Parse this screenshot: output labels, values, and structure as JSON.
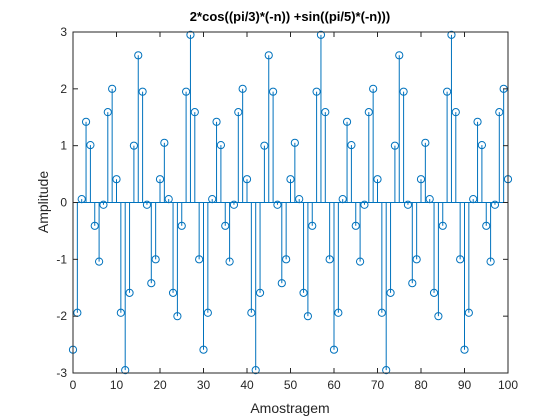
{
  "chart_data": {
    "type": "stem",
    "title": "2*cos((pi/3)*(-n)) +sin((pi/5)*(-n)))",
    "xlabel": "Amostragem",
    "ylabel": "Amplitude",
    "xlim": [
      0,
      100
    ],
    "ylim": [
      -3,
      3
    ],
    "xticks": [
      0,
      10,
      20,
      30,
      40,
      50,
      60,
      70,
      80,
      90,
      100
    ],
    "yticks": [
      -3,
      -2,
      -1,
      0,
      1,
      2,
      3
    ],
    "grid": false,
    "color": "#0072BD",
    "series": [
      {
        "x": [
          0,
          1,
          2,
          3,
          4,
          5,
          6,
          7,
          8,
          9,
          10,
          11,
          12,
          13,
          14,
          15,
          16,
          17,
          18,
          19,
          20,
          21,
          22,
          23,
          24,
          25,
          26,
          27,
          28,
          29,
          30,
          31,
          32,
          33,
          34,
          35,
          36,
          37,
          38,
          39,
          40,
          41,
          42,
          43,
          44,
          45,
          46,
          47,
          48,
          49,
          50,
          51,
          52,
          53,
          54,
          55,
          56,
          57,
          58,
          59,
          60,
          61,
          62,
          63,
          64,
          65,
          66,
          67,
          68,
          69,
          70,
          71,
          72,
          73,
          74,
          75,
          76,
          77,
          78,
          79,
          80,
          81,
          82,
          83,
          84,
          85,
          86,
          87,
          88,
          89,
          90,
          91,
          92,
          93,
          94,
          95,
          96,
          97,
          98,
          99,
          100
        ],
        "y": [
          -2.59,
          -1.94,
          0.06,
          1.42,
          1.01,
          -0.41,
          -1.04,
          -0.04,
          1.59,
          2.0,
          0.41,
          -1.94,
          -2.95,
          -1.59,
          1.0,
          2.59,
          1.95,
          -0.04,
          -1.42,
          -1.0,
          0.41,
          1.05,
          0.06,
          -1.59,
          -2.0,
          -0.41,
          1.95,
          2.95,
          1.59,
          -1.0,
          -2.59,
          -1.94,
          0.06,
          1.42,
          1.01,
          -0.41,
          -1.04,
          -0.04,
          1.59,
          2.0,
          0.41,
          -1.94,
          -2.95,
          -1.59,
          1.0,
          2.59,
          1.95,
          -0.04,
          -1.42,
          -1.0,
          0.41,
          1.05,
          0.06,
          -1.59,
          -2.0,
          -0.41,
          1.95,
          2.95,
          1.59,
          -1.0,
          -2.59,
          -1.94,
          0.06,
          1.42,
          1.01,
          -0.41,
          -1.04,
          -0.04,
          1.59,
          2.0,
          0.41,
          -1.94,
          -2.95,
          -1.59,
          1.0,
          2.59,
          1.95,
          -0.04,
          -1.42,
          -1.0,
          0.41,
          1.05,
          0.06,
          -1.59,
          -2.0,
          -0.41,
          1.95,
          2.95,
          1.59,
          -1.0,
          -2.59,
          -1.94,
          0.06,
          1.42,
          1.01,
          -0.41,
          -1.04,
          -0.04,
          1.59,
          2.0,
          0.41
        ]
      }
    ]
  }
}
